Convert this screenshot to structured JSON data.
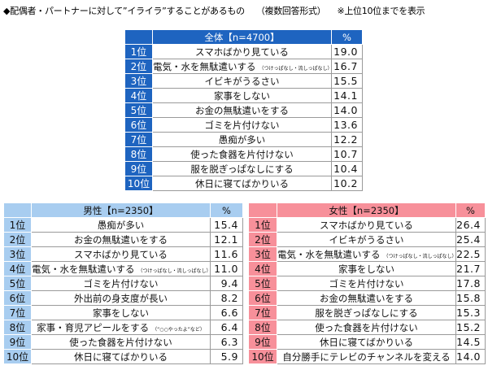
{
  "title": {
    "main": "◆配偶者・パートナーに対して”イライラ”することがあるもの",
    "format": "（複数回答形式）",
    "note": "※上位10位までを表示"
  },
  "colors": {
    "all": "#1e64c0",
    "male": "#a8cdf0",
    "female": "#f7909a"
  },
  "tables": {
    "all": {
      "header": "全体【n=4700】",
      "pct_header": "%",
      "rows": [
        {
          "rank": "1位",
          "item": "スマホばかり見ている",
          "note": "",
          "pct": "19.0"
        },
        {
          "rank": "2位",
          "item": "電気・水を無駄遣いする",
          "note": "（つけっぱなし・流しっぱなし）",
          "pct": "16.7"
        },
        {
          "rank": "3位",
          "item": "イビキがうるさい",
          "note": "",
          "pct": "15.5"
        },
        {
          "rank": "4位",
          "item": "家事をしない",
          "note": "",
          "pct": "14.1"
        },
        {
          "rank": "5位",
          "item": "お金の無駄遣いをする",
          "note": "",
          "pct": "14.0"
        },
        {
          "rank": "6位",
          "item": "ゴミを片付けない",
          "note": "",
          "pct": "13.6"
        },
        {
          "rank": "7位",
          "item": "愚痴が多い",
          "note": "",
          "pct": "12.2"
        },
        {
          "rank": "8位",
          "item": "使った食器を片付けない",
          "note": "",
          "pct": "10.7"
        },
        {
          "rank": "9位",
          "item": "服を脱ぎっぱなしにする",
          "note": "",
          "pct": "10.4"
        },
        {
          "rank": "10位",
          "item": "休日に寝てばかりいる",
          "note": "",
          "pct": "10.2"
        }
      ]
    },
    "male": {
      "header": "男性【n=2350】",
      "pct_header": "%",
      "rows": [
        {
          "rank": "1位",
          "item": "愚痴が多い",
          "note": "",
          "pct": "15.4"
        },
        {
          "rank": "2位",
          "item": "お金の無駄遣いをする",
          "note": "",
          "pct": "12.1"
        },
        {
          "rank": "3位",
          "item": "スマホばかり見ている",
          "note": "",
          "pct": "11.6"
        },
        {
          "rank": "4位",
          "item": "電気・水を無駄遣いする",
          "note": "（つけっぱなし・流しっぱなし）",
          "pct": "11.0"
        },
        {
          "rank": "5位",
          "item": "ゴミを片付けない",
          "note": "",
          "pct": "9.4"
        },
        {
          "rank": "6位",
          "item": "外出前の身支度が長い",
          "note": "",
          "pct": "8.2"
        },
        {
          "rank": "7位",
          "item": "家事をしない",
          "note": "",
          "pct": "6.6"
        },
        {
          "rank": "8位",
          "item": "家事・育児アピールをする",
          "note": "（“○○やったよ”など）",
          "pct": "6.4"
        },
        {
          "rank": "9位",
          "item": "使った食器を片付けない",
          "note": "",
          "pct": "6.3"
        },
        {
          "rank": "10位",
          "item": "休日に寝てばかりいる",
          "note": "",
          "pct": "5.9"
        }
      ]
    },
    "female": {
      "header": "女性【n=2350】",
      "pct_header": "%",
      "rows": [
        {
          "rank": "1位",
          "item": "スマホばかり見ている",
          "note": "",
          "pct": "26.4"
        },
        {
          "rank": "2位",
          "item": "イビキがうるさい",
          "note": "",
          "pct": "25.4"
        },
        {
          "rank": "3位",
          "item": "電気・水を無駄遣いする",
          "note": "（つけっぱなし・流しっぱなし）",
          "pct": "22.5"
        },
        {
          "rank": "4位",
          "item": "家事をしない",
          "note": "",
          "pct": "21.7"
        },
        {
          "rank": "5位",
          "item": "ゴミを片付けない",
          "note": "",
          "pct": "17.8"
        },
        {
          "rank": "6位",
          "item": "お金の無駄遣いをする",
          "note": "",
          "pct": "15.8"
        },
        {
          "rank": "7位",
          "item": "服を脱ぎっぱなしにする",
          "note": "",
          "pct": "15.3"
        },
        {
          "rank": "8位",
          "item": "使った食器を片付けない",
          "note": "",
          "pct": "15.2"
        },
        {
          "rank": "9位",
          "item": "休日に寝てばかりいる",
          "note": "",
          "pct": "14.5"
        },
        {
          "rank": "10位",
          "item": "自分勝手にテレビのチャンネルを変える",
          "note": "",
          "pct": "14.0"
        }
      ]
    }
  }
}
